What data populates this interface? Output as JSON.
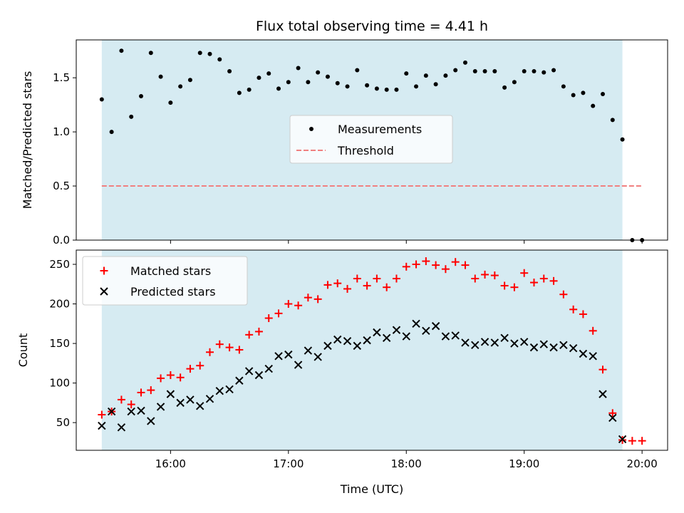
{
  "chart_data": [
    {
      "type": "scatter",
      "title": "Flux total observing time = 4.41 h",
      "ylabel": "Matched/Predicted stars",
      "ylim": [
        0,
        1.85
      ],
      "yticks": [
        "0.0",
        "0.5",
        "1.0",
        "1.5"
      ],
      "shaded_span": [
        "15:25",
        "19:50"
      ],
      "shade_color": "#add8e6",
      "legend_placement": "center",
      "series": [
        {
          "name": "Measurements",
          "marker": "dot",
          "color": "#000000",
          "x": [
            "15:25",
            "15:30",
            "15:35",
            "15:40",
            "15:45",
            "15:50",
            "15:55",
            "16:00",
            "16:05",
            "16:10",
            "16:15",
            "16:20",
            "16:25",
            "16:30",
            "16:35",
            "16:40",
            "16:45",
            "16:50",
            "16:55",
            "17:00",
            "17:05",
            "17:10",
            "17:15",
            "17:20",
            "17:25",
            "17:30",
            "17:35",
            "17:40",
            "17:45",
            "17:50",
            "17:55",
            "18:00",
            "18:05",
            "18:10",
            "18:15",
            "18:20",
            "18:25",
            "18:30",
            "18:35",
            "18:40",
            "18:45",
            "18:50",
            "18:55",
            "19:00",
            "19:05",
            "19:10",
            "19:15",
            "19:20",
            "19:25",
            "19:30",
            "19:35",
            "19:40",
            "19:45",
            "19:50",
            "19:55",
            "20:00"
          ],
          "y": [
            1.3,
            1.0,
            1.75,
            1.14,
            1.33,
            1.73,
            1.51,
            1.27,
            1.42,
            1.48,
            1.73,
            1.72,
            1.67,
            1.56,
            1.36,
            1.39,
            1.5,
            1.54,
            1.4,
            1.46,
            1.59,
            1.46,
            1.55,
            1.51,
            1.45,
            1.42,
            1.57,
            1.43,
            1.4,
            1.39,
            1.39,
            1.54,
            1.42,
            1.52,
            1.44,
            1.52,
            1.57,
            1.64,
            1.56,
            1.56,
            1.56,
            1.41,
            1.46,
            1.56,
            1.56,
            1.55,
            1.57,
            1.42,
            1.34,
            1.36,
            1.24,
            1.35,
            1.11,
            0.93,
            0.0,
            0.0
          ]
        },
        {
          "name": "Threshold",
          "marker": "dashed-line",
          "color": "#f08080",
          "x": [
            "15:25",
            "20:00"
          ],
          "y": [
            0.5,
            0.5
          ]
        }
      ]
    },
    {
      "type": "scatter",
      "xlabel": "Time (UTC)",
      "ylabel": "Count",
      "ylim": [
        15,
        268
      ],
      "yticks": [
        "50",
        "100",
        "150",
        "200",
        "250"
      ],
      "xticks": [
        "16:00",
        "17:00",
        "18:00",
        "19:00",
        "20:00"
      ],
      "xlim": [
        "15:12",
        "20:13"
      ],
      "shaded_span": [
        "15:25",
        "19:50"
      ],
      "shade_color": "#add8e6",
      "legend_placement": "upper left",
      "series": [
        {
          "name": "Matched stars",
          "marker": "plus",
          "color": "#ff0000",
          "x": [
            "15:25",
            "15:30",
            "15:35",
            "15:40",
            "15:45",
            "15:50",
            "15:55",
            "16:00",
            "16:05",
            "16:10",
            "16:15",
            "16:20",
            "16:25",
            "16:30",
            "16:35",
            "16:40",
            "16:45",
            "16:50",
            "16:55",
            "17:00",
            "17:05",
            "17:10",
            "17:15",
            "17:20",
            "17:25",
            "17:30",
            "17:35",
            "17:40",
            "17:45",
            "17:50",
            "17:55",
            "18:00",
            "18:05",
            "18:10",
            "18:15",
            "18:20",
            "18:25",
            "18:30",
            "18:35",
            "18:40",
            "18:45",
            "18:50",
            "18:55",
            "19:00",
            "19:05",
            "19:10",
            "19:15",
            "19:20",
            "19:25",
            "19:30",
            "19:35",
            "19:40",
            "19:45",
            "19:50",
            "19:55",
            "20:00"
          ],
          "y": [
            60,
            64,
            79,
            73,
            88,
            91,
            106,
            110,
            107,
            118,
            122,
            139,
            149,
            145,
            142,
            161,
            165,
            182,
            188,
            200,
            198,
            208,
            206,
            224,
            226,
            219,
            232,
            223,
            232,
            221,
            232,
            247,
            250,
            254,
            249,
            244,
            253,
            249,
            232,
            237,
            236,
            223,
            221,
            239,
            227,
            232,
            229,
            212,
            193,
            187,
            166,
            117,
            62,
            28,
            27,
            27
          ]
        },
        {
          "name": "Predicted stars",
          "marker": "x",
          "color": "#000000",
          "x": [
            "15:25",
            "15:30",
            "15:35",
            "15:40",
            "15:45",
            "15:50",
            "15:55",
            "16:00",
            "16:05",
            "16:10",
            "16:15",
            "16:20",
            "16:25",
            "16:30",
            "16:35",
            "16:40",
            "16:45",
            "16:50",
            "16:55",
            "17:00",
            "17:05",
            "17:10",
            "17:15",
            "17:20",
            "17:25",
            "17:30",
            "17:35",
            "17:40",
            "17:45",
            "17:50",
            "17:55",
            "18:00",
            "18:05",
            "18:10",
            "18:15",
            "18:20",
            "18:25",
            "18:30",
            "18:35",
            "18:40",
            "18:45",
            "18:50",
            "18:55",
            "19:00",
            "19:05",
            "19:10",
            "19:15",
            "19:20",
            "19:25",
            "19:30",
            "19:35",
            "19:40",
            "19:45",
            "19:50"
          ],
          "y": [
            46,
            64,
            44,
            64,
            65,
            52,
            70,
            86,
            75,
            79,
            71,
            80,
            90,
            92,
            103,
            115,
            110,
            118,
            134,
            136,
            123,
            141,
            133,
            147,
            155,
            153,
            147,
            154,
            164,
            157,
            167,
            159,
            175,
            166,
            172,
            159,
            160,
            151,
            148,
            152,
            151,
            157,
            150,
            152,
            145,
            149,
            145,
            148,
            144,
            137,
            134,
            86,
            56,
            29
          ]
        }
      ]
    }
  ]
}
